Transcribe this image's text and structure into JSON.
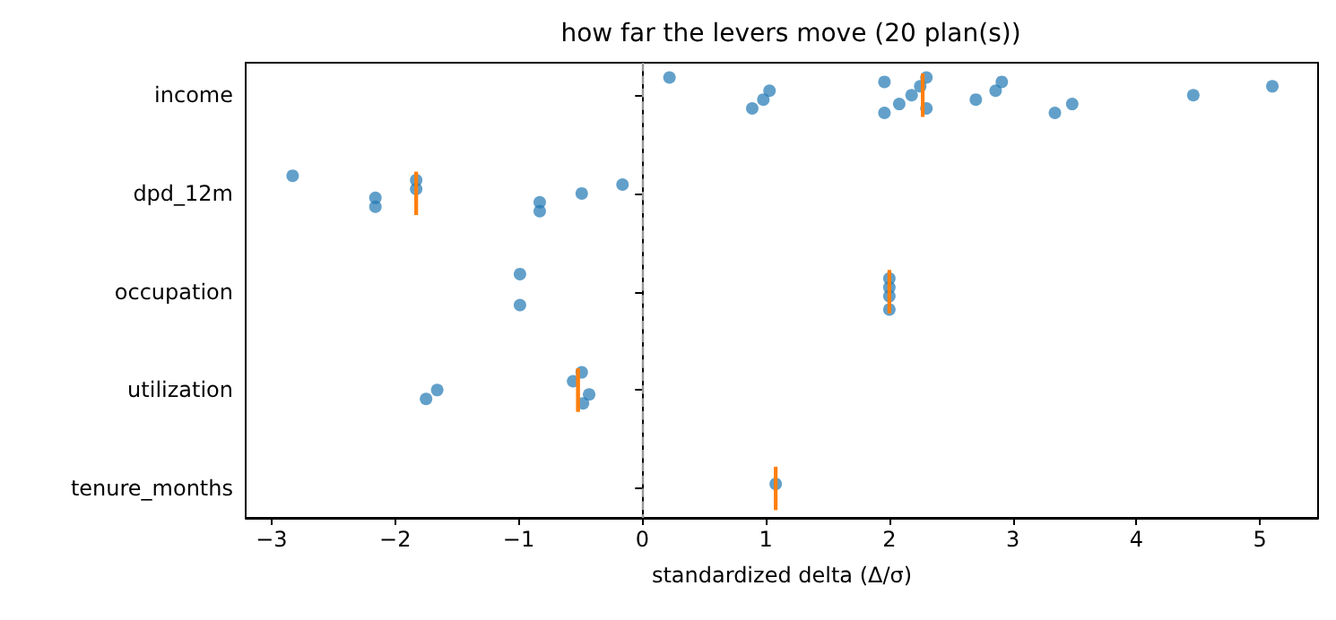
{
  "chart_data": {
    "type": "scatter",
    "orientation": "horizontal",
    "title": "how far the levers move (20 plan(s))",
    "xlabel": "standardized delta (Δ/σ)",
    "categories": [
      "income",
      "dpd_12m",
      "occupation",
      "utilization",
      "tenure_months"
    ],
    "xlim": [
      -3.21,
      5.47
    ],
    "xticks": [
      {
        "value": -3,
        "label": "−3"
      },
      {
        "value": -2,
        "label": "−2"
      },
      {
        "value": -1,
        "label": "−1"
      },
      0,
      1,
      2,
      3,
      4,
      5
    ],
    "grid": false,
    "ref_lines": [
      {
        "axis": "x",
        "value": 0,
        "label": null,
        "color": "#999999",
        "line_style": "dashed"
      }
    ],
    "series": [
      {
        "color": "#1f77b4",
        "marker": "circle",
        "x": [
          "income",
          "income",
          "income",
          "income",
          "income",
          "income",
          "income",
          "income",
          "income",
          "income",
          "income",
          "income",
          "income",
          "income",
          "income",
          "income",
          "income",
          "income",
          "dpd_12m",
          "dpd_12m",
          "dpd_12m",
          "dpd_12m",
          "dpd_12m",
          "dpd_12m",
          "dpd_12m",
          "dpd_12m",
          "dpd_12m",
          "occupation",
          "occupation",
          "occupation",
          "occupation",
          "occupation",
          "occupation",
          "utilization",
          "utilization",
          "utilization",
          "utilization",
          "utilization",
          "utilization",
          "tenure_months"
        ],
        "values": [
          0.22,
          0.89,
          0.98,
          1.03,
          1.96,
          1.96,
          2.08,
          2.18,
          2.25,
          2.3,
          2.3,
          2.7,
          2.86,
          2.91,
          3.34,
          3.48,
          4.46,
          5.1,
          -2.83,
          -2.16,
          -2.16,
          -1.83,
          -1.83,
          -0.83,
          -0.83,
          -0.49,
          -0.16,
          -0.99,
          -0.99,
          2.0,
          2.0,
          2.0,
          2.0,
          -1.75,
          -1.66,
          -0.56,
          -0.49,
          -0.48,
          -0.43,
          1.08
        ]
      },
      {
        "type": "box",
        "color": "#ff7f0e",
        "x": [
          "income",
          "dpd_12m",
          "occupation",
          "utilization",
          "tenure_months"
        ],
        "boxes": [
          {
            "low": 2.27,
            "q1": 2.27,
            "median": 2.27,
            "q3": 2.27,
            "high": 2.27
          },
          {
            "low": -1.83,
            "q1": -1.83,
            "median": -1.83,
            "q3": -1.83,
            "high": -1.83
          },
          {
            "low": 2.0,
            "q1": 2.0,
            "median": 2.0,
            "q3": 2.0,
            "high": 2.0
          },
          {
            "low": -0.52,
            "q1": -0.52,
            "median": -0.52,
            "q3": -0.52,
            "high": -0.52
          },
          {
            "low": 1.08,
            "q1": 1.08,
            "median": 1.08,
            "q3": 1.08,
            "high": 1.08
          }
        ]
      }
    ]
  }
}
